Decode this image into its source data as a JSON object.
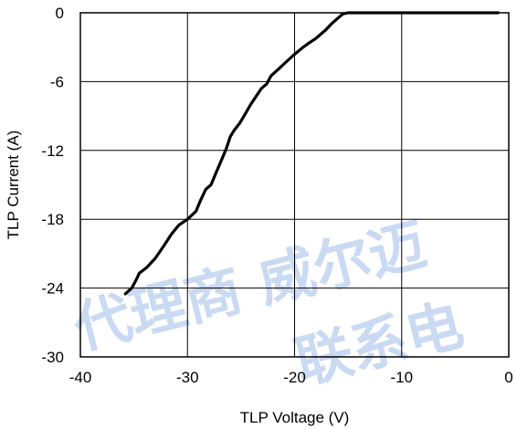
{
  "chart_data": {
    "type": "line",
    "title": "",
    "xlabel": "TLP Voltage (V)",
    "ylabel": "TLP Current (A)",
    "xlim": [
      -40,
      0
    ],
    "ylim": [
      -30,
      0
    ],
    "x_ticks": [
      -40,
      -30,
      -20,
      -10,
      0
    ],
    "y_ticks": [
      0,
      -6,
      -12,
      -18,
      -24,
      -30
    ],
    "x_tick_labels": [
      "-40",
      "-30",
      "-20",
      "-10",
      "0"
    ],
    "y_tick_labels": [
      "0",
      "-6",
      "-12",
      "-18",
      "-24",
      "-30"
    ],
    "grid": true,
    "legend": "none",
    "series": [
      {
        "color": "#000000",
        "x": [
          -35.8,
          -35.2,
          -34.8,
          -34.5,
          -33.8,
          -33.0,
          -32.2,
          -31.5,
          -30.8,
          -30.0,
          -29.2,
          -28.8,
          -28.3,
          -27.8,
          -27.4,
          -26.9,
          -26.4,
          -26.0,
          -25.6,
          -25.1,
          -24.6,
          -24.1,
          -23.6,
          -23.1,
          -22.6,
          -22.2,
          -21.6,
          -20.8,
          -20.1,
          -19.2,
          -18.6,
          -18.1,
          -17.6,
          -17.1,
          -16.6,
          -16.0,
          -15.5,
          -15.0,
          -14.6,
          -14.2,
          -13.0,
          -10.0,
          -5.0,
          -1.0
        ],
        "y": [
          -24.5,
          -24.0,
          -23.3,
          -22.7,
          -22.2,
          -21.4,
          -20.3,
          -19.3,
          -18.5,
          -18.0,
          -17.3,
          -16.4,
          -15.4,
          -15.0,
          -14.1,
          -13.0,
          -11.9,
          -10.8,
          -10.2,
          -9.6,
          -8.8,
          -8.0,
          -7.3,
          -6.6,
          -6.2,
          -5.5,
          -5.0,
          -4.3,
          -3.7,
          -3.0,
          -2.6,
          -2.3,
          -1.9,
          -1.5,
          -1.0,
          -0.5,
          -0.1,
          0.0,
          0.0,
          0.0,
          0.0,
          0.0,
          0.0,
          0.0
        ]
      }
    ]
  },
  "watermark": {
    "line1": "代理商 威尔迈",
    "line2": "联系电",
    "color": "#c9daf2"
  }
}
